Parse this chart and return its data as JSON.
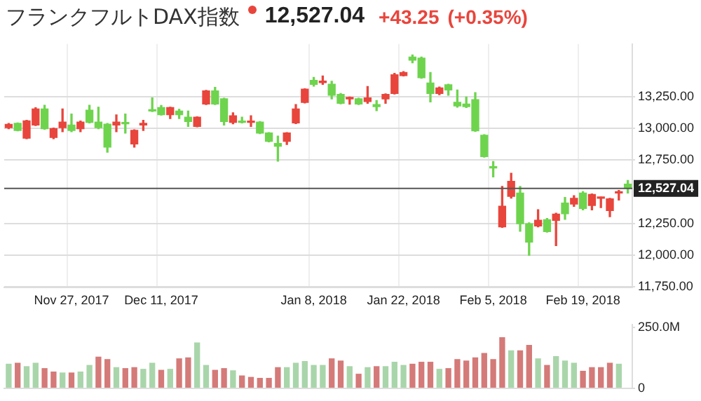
{
  "chart_data": [
    {
      "type": "candlestick",
      "title": "フランクフルトDAX指数",
      "annotations": [
        "12,527.04",
        "+43.25",
        "(+0.35%)"
      ],
      "categories": [
        null,
        null,
        null,
        null,
        null,
        null,
        null,
        "Nov 27, 2017",
        null,
        null,
        null,
        null,
        null,
        null,
        null,
        null,
        null,
        "Dec 11, 2017",
        null,
        null,
        null,
        null,
        null,
        null,
        null,
        null,
        null,
        null,
        null,
        null,
        null,
        null,
        null,
        null,
        "Jan 8, 2018",
        null,
        null,
        null,
        null,
        null,
        null,
        null,
        null,
        null,
        "Jan 22, 2018",
        null,
        null,
        null,
        null,
        null,
        null,
        null,
        null,
        null,
        "Feb 5, 2018",
        null,
        null,
        null,
        null,
        null,
        null,
        null,
        null,
        null,
        "Feb 19, 2018",
        null,
        null,
        null,
        null,
        null
      ],
      "ohlc": [
        [
          13007,
          13040,
          13000,
          13034
        ],
        [
          13042,
          13045,
          12983,
          12986
        ],
        [
          12924,
          13065,
          12920,
          13062
        ],
        [
          13028,
          13166,
          13024,
          13156
        ],
        [
          13156,
          13185,
          12995,
          13000
        ],
        [
          12930,
          13005,
          12920,
          13000
        ],
        [
          13007,
          13156,
          12976,
          13052
        ],
        [
          13028,
          13115,
          12976,
          12986
        ],
        [
          13000,
          13060,
          12976,
          13052
        ],
        [
          13146,
          13185,
          13045,
          13049
        ],
        [
          13052,
          13170,
          13000,
          13007
        ],
        [
          13035,
          13040,
          12813,
          12854
        ],
        [
          13028,
          13108,
          12976,
          13052
        ],
        [
          13042,
          13115,
          12965,
          13038
        ],
        [
          12878,
          12990,
          12854,
          12986
        ],
        [
          13028,
          13066,
          12986,
          13042
        ],
        [
          13142,
          13243,
          13135,
          13139
        ],
        [
          13167,
          13184,
          13107,
          13111
        ],
        [
          13111,
          13170,
          13080,
          13167
        ],
        [
          13139,
          13153,
          13080,
          13111
        ],
        [
          13090,
          13139,
          13017,
          13056
        ],
        [
          13017,
          13094,
          13014,
          13090
        ],
        [
          13195,
          13303,
          13191,
          13299
        ],
        [
          13299,
          13327,
          13191,
          13195
        ],
        [
          13236,
          13240,
          13028,
          13056
        ],
        [
          13049,
          13125,
          13038,
          13101
        ],
        [
          13052,
          13090,
          13045,
          13049
        ],
        [
          13049,
          13101,
          13017,
          13052
        ],
        [
          13052,
          13056,
          12960,
          12965
        ],
        [
          12965,
          12969,
          12895,
          12899
        ],
        [
          12882,
          12941,
          12743,
          12861
        ],
        [
          12899,
          12969,
          12875,
          12965
        ],
        [
          13045,
          13191,
          13040,
          13156
        ],
        [
          13208,
          13316,
          13204,
          13312
        ],
        [
          13382,
          13406,
          13337,
          13351
        ],
        [
          13365,
          13417,
          13351,
          13372
        ],
        [
          13351,
          13375,
          13236,
          13264
        ],
        [
          13271,
          13278,
          13197,
          13201
        ],
        [
          13236,
          13250,
          13194,
          13240
        ],
        [
          13236,
          13240,
          13191,
          13195
        ],
        [
          13215,
          13333,
          13201,
          13243
        ],
        [
          13191,
          13222,
          13142,
          13174
        ],
        [
          13236,
          13275,
          13201,
          13271
        ],
        [
          13278,
          13437,
          13274,
          13427
        ],
        [
          13420,
          13451,
          13417,
          13444
        ],
        [
          13566,
          13583,
          13521,
          13542
        ],
        [
          13559,
          13566,
          13399,
          13403
        ],
        [
          13361,
          13444,
          13212,
          13278
        ],
        [
          13278,
          13330,
          13268,
          13323
        ],
        [
          13347,
          13351,
          13264,
          13306
        ],
        [
          13208,
          13306,
          13170,
          13180
        ],
        [
          13195,
          13250,
          13167,
          13174
        ],
        [
          13229,
          13285,
          12979,
          12983
        ],
        [
          12948,
          12952,
          12774,
          12778
        ],
        [
          12691,
          12740,
          12618,
          12688
        ],
        [
          12222,
          12542,
          12218,
          12385
        ],
        [
          12464,
          12646,
          12450,
          12583
        ],
        [
          12490,
          12542,
          12187,
          12247
        ],
        [
          12247,
          12254,
          11997,
          12101
        ],
        [
          12229,
          12357,
          12222,
          12274
        ],
        [
          12278,
          12288,
          12180,
          12184
        ],
        [
          12274,
          12330,
          12073,
          12323
        ],
        [
          12410,
          12455,
          12281,
          12326
        ],
        [
          12403,
          12469,
          12385,
          12448
        ],
        [
          12490,
          12500,
          12357,
          12368
        ],
        [
          12392,
          12483,
          12357,
          12479
        ],
        [
          12448,
          12458,
          12375,
          12455
        ],
        [
          12351,
          12448,
          12302,
          12444
        ],
        [
          12490,
          12510,
          12434,
          12493
        ],
        [
          12560,
          12590,
          12490,
          12527
        ]
      ],
      "colors": [
        "#e8453c",
        "#6ed44e",
        "#e8453c",
        "#e8453c",
        "#6ed44e",
        "#e8453c",
        "#e8453c",
        "#6ed44e",
        "#e8453c",
        "#6ed44e",
        "#6ed44e",
        "#6ed44e",
        "#e8453c",
        "#6ed44e",
        "#e8453c",
        "#e8453c",
        "#6ed44e",
        "#6ed44e",
        "#e8453c",
        "#6ed44e",
        "#6ed44e",
        "#e8453c",
        "#e8453c",
        "#6ed44e",
        "#6ed44e",
        "#e8453c",
        "#6ed44e",
        "#e8453c",
        "#6ed44e",
        "#6ed44e",
        "#6ed44e",
        "#e8453c",
        "#e8453c",
        "#e8453c",
        "#6ed44e",
        "#e8453c",
        "#6ed44e",
        "#6ed44e",
        "#e8453c",
        "#6ed44e",
        "#e8453c",
        "#6ed44e",
        "#e8453c",
        "#e8453c",
        "#e8453c",
        "#6ed44e",
        "#6ed44e",
        "#6ed44e",
        "#e8453c",
        "#6ed44e",
        "#6ed44e",
        "#6ed44e",
        "#6ed44e",
        "#6ed44e",
        "#6ed44e",
        "#e8453c",
        "#e8453c",
        "#6ed44e",
        "#6ed44e",
        "#e8453c",
        "#6ed44e",
        "#e8453c",
        "#6ed44e",
        "#e8453c",
        "#6ed44e",
        "#e8453c",
        "#e8453c",
        "#e8453c",
        "#e8453c",
        "#6ed44e"
      ],
      "ylim": [
        11740,
        13670
      ],
      "yticks": [
        {
          "value": 11750,
          "label": "11,750.00"
        },
        {
          "value": 12000,
          "label": "12,000.00"
        },
        {
          "value": 12250,
          "label": "12,250.00"
        },
        {
          "value": 12750,
          "label": "12,750.00"
        },
        {
          "value": 13000,
          "label": "13,000.00"
        },
        {
          "value": 13250,
          "label": "13,250.00"
        }
      ],
      "grid": true,
      "ref_lines": [
        {
          "axis": "y",
          "value": 12527.04,
          "label": "12,527.04",
          "color": "#555555"
        }
      ]
    },
    {
      "type": "bar",
      "tick_labels": "y",
      "categories": [
        null,
        null,
        null,
        null,
        null,
        null,
        null,
        null,
        null,
        null,
        null,
        null,
        null,
        null,
        null,
        null,
        null,
        null,
        null,
        null,
        null,
        null,
        null,
        null,
        null,
        null,
        null,
        null,
        null,
        null,
        null,
        null,
        null,
        null,
        null,
        null,
        null,
        null,
        null,
        null,
        null,
        null,
        null,
        null,
        null,
        null,
        null,
        null,
        null,
        null,
        null,
        null,
        null,
        null,
        null,
        null,
        null,
        null,
        null,
        null,
        null,
        null,
        null,
        null,
        null,
        null,
        null,
        null,
        null,
        null
      ],
      "values": [
        101,
        105,
        91,
        105,
        83,
        69,
        65,
        65,
        69,
        96,
        130,
        120,
        87,
        83,
        87,
        80,
        105,
        76,
        80,
        123,
        127,
        188,
        96,
        76,
        83,
        74,
        53,
        47,
        43,
        43,
        87,
        87,
        105,
        112,
        96,
        96,
        123,
        114,
        91,
        60,
        87,
        91,
        91,
        109,
        96,
        101,
        109,
        109,
        80,
        83,
        120,
        114,
        127,
        145,
        120,
        210,
        156,
        156,
        178,
        123,
        96,
        132,
        114,
        105,
        72,
        87,
        87,
        105,
        101,
        null
      ],
      "colors": [
        "#a9d5aa",
        "#d47a78",
        "#a9d5aa",
        "#a9d5aa",
        "#d47a78",
        "#d47a78",
        "#a9d5aa",
        "#d47a78",
        "#a9d5aa",
        "#a9d5aa",
        "#d47a78",
        "#d47a78",
        "#a9d5aa",
        "#d47a78",
        "#d47a78",
        "#a9d5aa",
        "#a9d5aa",
        "#d47a78",
        "#a9d5aa",
        "#d47a78",
        "#d47a78",
        "#a9d5aa",
        "#a9d5aa",
        "#d47a78",
        "#d47a78",
        "#a9d5aa",
        "#d47a78",
        "#d47a78",
        "#d47a78",
        "#d47a78",
        "#d47a78",
        "#a9d5aa",
        "#a9d5aa",
        "#a9d5aa",
        "#a9d5aa",
        "#a9d5aa",
        "#d47a78",
        "#d47a78",
        "#a9d5aa",
        "#d47a78",
        "#a9d5aa",
        "#d47a78",
        "#a9d5aa",
        "#a9d5aa",
        "#a9d5aa",
        "#d47a78",
        "#d47a78",
        "#d47a78",
        "#a9d5aa",
        "#d47a78",
        "#d47a78",
        "#d47a78",
        "#d47a78",
        "#d47a78",
        "#d47a78",
        "#d47a78",
        "#a9d5aa",
        "#d47a78",
        "#d47a78",
        "#a9d5aa",
        "#d47a78",
        "#a9d5aa",
        "#a9d5aa",
        "#a9d5aa",
        "#d47a78",
        "#d47a78",
        "#d47a78",
        "#d47a78",
        "#a9d5aa",
        "#a9d5aa"
      ],
      "ylim": [
        0,
        262
      ],
      "yticks": [
        0,
        {
          "value": 250,
          "label": "250.0M"
        }
      ]
    }
  ]
}
